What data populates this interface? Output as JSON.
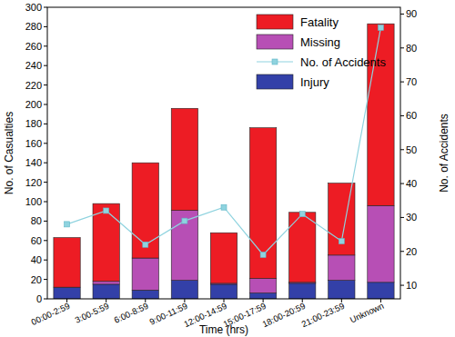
{
  "chart_data": {
    "type": "bar",
    "stacked": true,
    "grid": false,
    "legend": "upper right",
    "x_label": "Time (hrs)",
    "y_label": "No. of Casualties",
    "y2_label": "No. of Accidents",
    "categories": [
      "00:00-2:59",
      "3:00-5:59",
      "6:00-8:59",
      "9:00-11:59",
      "12:00-14:59",
      "15:00-17:59",
      "18:00-20:59",
      "21:00-23:59",
      "Unknown"
    ],
    "ylim": [
      0,
      300
    ],
    "yticks": [
      0,
      20,
      40,
      60,
      80,
      100,
      120,
      140,
      160,
      180,
      200,
      220,
      240,
      260,
      280,
      300
    ],
    "y2lim": [
      6,
      92
    ],
    "y2ticks": [
      10,
      20,
      30,
      40,
      50,
      60,
      70,
      80,
      90
    ],
    "series": [
      {
        "name": "Fatality",
        "type": "bar",
        "color": "#ed1c24",
        "values": [
          51,
          80,
          98,
          105,
          52,
          155,
          72,
          74,
          187
        ]
      },
      {
        "name": "Missing",
        "type": "bar",
        "color": "#b74fb5",
        "values": [
          0,
          3,
          33,
          72,
          1,
          15,
          1,
          26,
          79
        ]
      },
      {
        "name": "No. of Accidents",
        "type": "line",
        "axis": "y2",
        "marker": "square",
        "line_style": "solid",
        "color": "#8fd3df",
        "values": [
          28,
          32,
          22,
          29,
          33,
          19,
          31,
          23,
          86
        ]
      },
      {
        "name": "Injury",
        "type": "bar",
        "color": "#3340a8",
        "values": [
          12,
          15,
          9,
          19,
          15,
          6,
          16,
          19,
          17
        ]
      }
    ]
  }
}
